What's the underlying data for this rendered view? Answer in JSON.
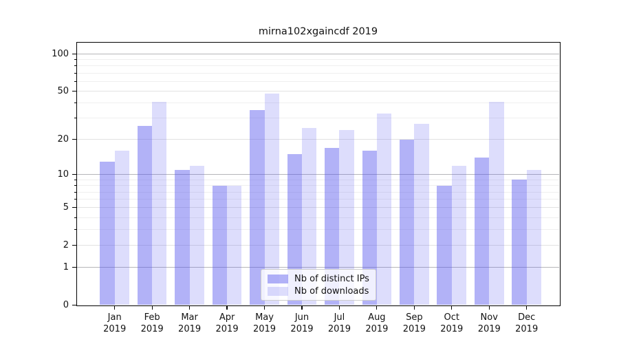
{
  "title": "mirna102xgaincdf 2019",
  "legend": {
    "position": "lower center",
    "items": [
      {
        "label": "Nb of distinct IPs",
        "color": "#aaaaf2"
      },
      {
        "label": "Nb of downloads",
        "color": "#dcdcf8"
      }
    ]
  },
  "axes": {
    "ytick_labels": [
      "100",
      "50",
      "20",
      "10",
      "5",
      "2",
      "1",
      "0"
    ],
    "xtick_labels": [
      "Jan 2019",
      "Feb 2019",
      "Mar 2019",
      "Apr 2019",
      "May 2019",
      "Jun 2019",
      "Jul 2019",
      "Aug 2019",
      "Sep 2019",
      "Oct 2019",
      "Nov 2019",
      "Dec 2019"
    ]
  },
  "chart_data": {
    "type": "bar",
    "title": "mirna102xgaincdf 2019",
    "categories": [
      "Jan 2019",
      "Feb 2019",
      "Mar 2019",
      "Apr 2019",
      "May 2019",
      "Jun 2019",
      "Jul 2019",
      "Aug 2019",
      "Sep 2019",
      "Oct 2019",
      "Nov 2019",
      "Dec 2019"
    ],
    "series": [
      {
        "name": "Nb of distinct IPs",
        "fill": "rgba(85,85,238,0.45)",
        "values": [
          13,
          26,
          11,
          8,
          35,
          15,
          17,
          16,
          20,
          8,
          14,
          9
        ]
      },
      {
        "name": "Nb of downloads",
        "fill": "rgba(85,85,238,0.2)",
        "values": [
          16,
          41,
          12,
          8,
          48,
          25,
          24,
          33,
          27,
          12,
          41,
          11
        ]
      }
    ],
    "xlabel": "",
    "ylabel": "",
    "yscale": "log1p",
    "yticks": [
      0,
      1,
      2,
      5,
      10,
      20,
      50,
      100
    ],
    "ylim": [
      0,
      124
    ],
    "grid": true,
    "grid_minor_values": [
      3,
      4,
      6,
      7,
      8,
      9,
      30,
      40,
      60,
      70,
      80,
      90
    ],
    "grid_mid_values": [
      2,
      5,
      20,
      50
    ],
    "grid_major_values": [
      1,
      10,
      100
    ],
    "legend_position": "lower center"
  },
  "colors": {
    "grid_major": "#b5b5b9",
    "grid_mid": "#e2e2e2",
    "grid_minor": "#efefef",
    "spine": "#000000",
    "background": "#ffffff"
  }
}
